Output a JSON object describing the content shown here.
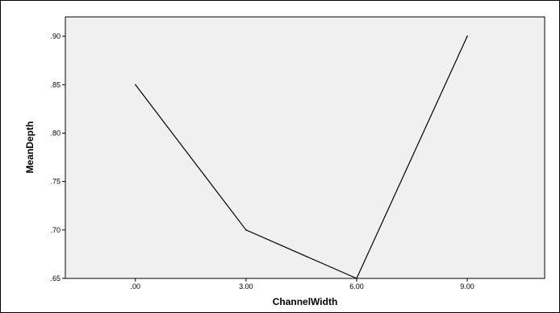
{
  "chart_data": {
    "type": "line",
    "title": "",
    "xlabel": "ChannelWidth",
    "ylabel": "MeanDepth",
    "categories": [
      ".00",
      "3.00",
      "6.00",
      "9.00"
    ],
    "x": [
      0,
      3,
      6,
      9
    ],
    "series": [
      {
        "values": [
          0.85,
          0.7,
          0.65,
          0.9
        ]
      }
    ],
    "ylim": [
      0.65,
      0.92
    ],
    "yticks": [
      0.65,
      0.7,
      0.75,
      0.8,
      0.85,
      0.9
    ],
    "ytick_labels": [
      ".65",
      ".70",
      ".75",
      ".80",
      ".85",
      ".90"
    ],
    "grid": false,
    "legend": "none",
    "colors": {
      "plot_background": "#f0f0f0",
      "line": "#000000",
      "axis": "#000000"
    }
  }
}
